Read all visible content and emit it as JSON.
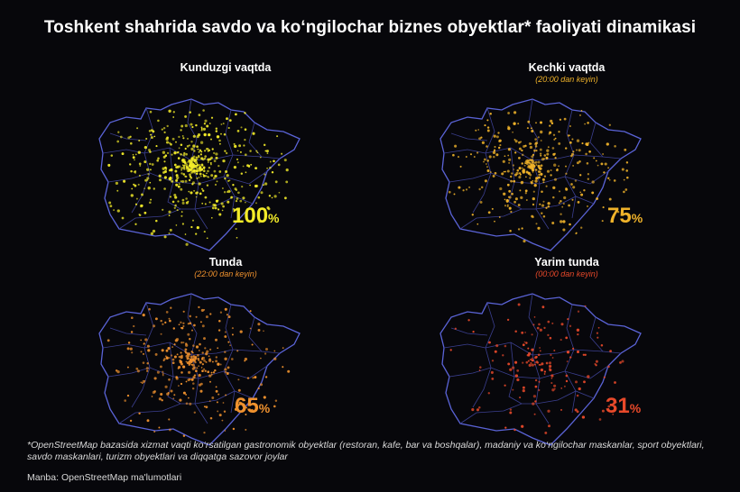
{
  "title": "Toshkent shahrida savdo va ko‘ngilochar biznes obyektlar* faoliyati dinamikasi",
  "panels": [
    {
      "title": "Kunduzgi vaqtda",
      "subtitle": "",
      "value": "100",
      "unit": "%",
      "color": "#f3ec29",
      "density": 1.0
    },
    {
      "title": "Kechki vaqtda",
      "subtitle": "(20:00 dan keyin)",
      "value": "75",
      "unit": "%",
      "color": "#f0b32a",
      "density": 0.75
    },
    {
      "title": "Tunda",
      "subtitle": "(22:00 dan keyin)",
      "value": "65",
      "unit": "%",
      "color": "#f0922e",
      "density": 0.65
    },
    {
      "title": "Yarim tunda",
      "subtitle": "(00:00 dan keyin)",
      "value": "31",
      "unit": "%",
      "color": "#e8492a",
      "density": 0.31
    }
  ],
  "map_style": {
    "outline_color": "#5a63d6",
    "district_color": "#3b3f8f"
  },
  "footnote": "*OpenStreetMap bazasida xizmat vaqti ko‘rsatilgan gastronomik obyektlar (restoran, kafe, bar va boshqalar), madaniy va ko‘ngilochar maskanlar, sport obyektlari, savdo maskanlari, turizm obyektlari va diqqatga sazovor joylar",
  "source": "Manba: OpenStreetMap ma'lumotlari"
}
